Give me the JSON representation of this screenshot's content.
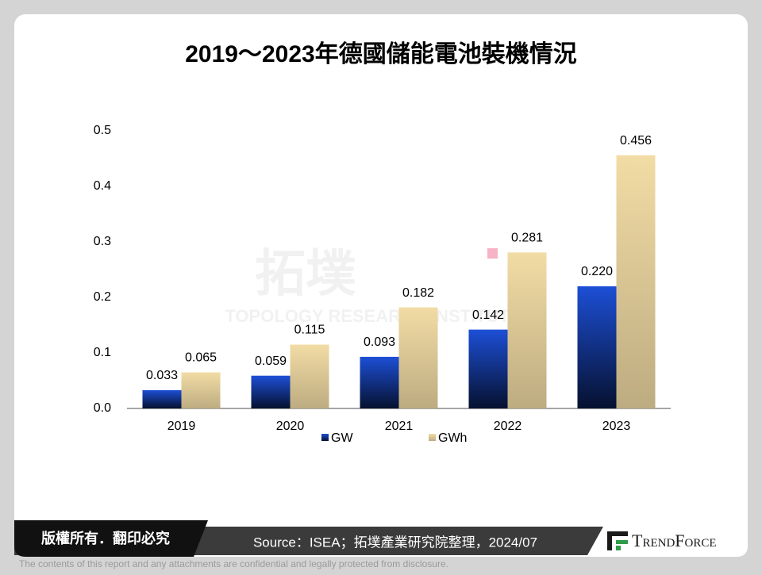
{
  "chart_data": {
    "type": "bar",
    "title": "2019～2023年德國儲能電池裝機情況",
    "categories": [
      "2019",
      "2020",
      "2021",
      "2022",
      "2023"
    ],
    "series": [
      {
        "name": "GW",
        "color": "#1d4fd6",
        "values": [
          0.033,
          0.059,
          0.093,
          0.142,
          0.22
        ],
        "value_labels": [
          "0.033",
          "0.059",
          "0.093",
          "0.142",
          "0.220"
        ]
      },
      {
        "name": "GWh",
        "color": "#f2dca5",
        "values": [
          0.065,
          0.115,
          0.182,
          0.281,
          0.456
        ],
        "value_labels": [
          "0.065",
          "0.115",
          "0.182",
          "0.281",
          "0.456"
        ]
      }
    ],
    "ylim": [
      0,
      0.5
    ],
    "yticks": [
      {
        "value": 0,
        "label": "0.0"
      },
      0.1,
      0.2,
      0.3,
      0.4,
      0.5
    ],
    "grid": false,
    "legend": "bottom"
  },
  "watermark": {
    "logo": "拓墣",
    "text": "TOPOLOGY RESEARCH INSTITUTE"
  },
  "footer": {
    "copyright": "版權所有．翻印必究",
    "source": "Source：ISEA；拓墣產業研究院整理，2024/07",
    "logo": "TrendForce",
    "disclaimer": "The contents of this report and any attachments are confidential and legally protected from disclosure."
  }
}
